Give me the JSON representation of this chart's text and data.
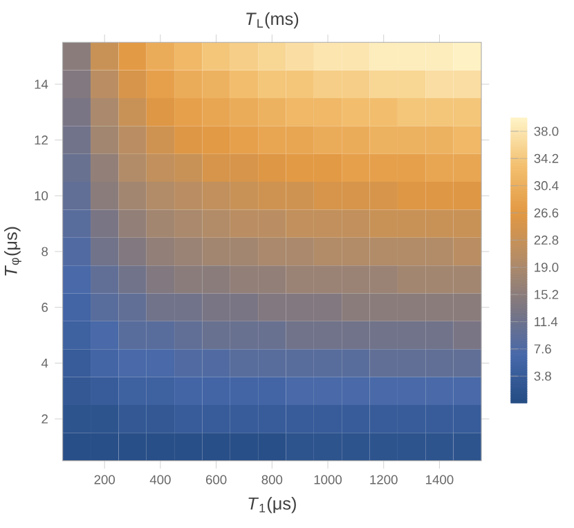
{
  "chart_data": {
    "type": "heatmap",
    "title": "*T*$_{L}$(ms)",
    "xlabel": "*T*$_{1}$(μs)",
    "ylabel": "*T*$_{φ}$(μs)",
    "categories": [
      null,
      "200",
      null,
      "400",
      null,
      "600",
      null,
      "800",
      null,
      "1000",
      null,
      "1200",
      null,
      "1400",
      null
    ],
    "y_categories": [
      null,
      "14",
      null,
      "12",
      null,
      "10",
      null,
      "8",
      null,
      "6",
      null,
      "4",
      null,
      "2",
      null
    ],
    "cells": [
      [
        15,
        23,
        27,
        30,
        32,
        34,
        35,
        36,
        37,
        38,
        38,
        39,
        39,
        39,
        39.5
      ],
      [
        14,
        21,
        25,
        28,
        30,
        31,
        33,
        34,
        34,
        35,
        35,
        36,
        36,
        37,
        37
      ],
      [
        13,
        19,
        23,
        26,
        28,
        29,
        30,
        31,
        32,
        32,
        33,
        33,
        34,
        34,
        34
      ],
      [
        12,
        18,
        21,
        24,
        26,
        27,
        28,
        29,
        29,
        30,
        30,
        31,
        31,
        31,
        32
      ],
      [
        11,
        16,
        20,
        22,
        23,
        25,
        25,
        26,
        27,
        27,
        28,
        28,
        28,
        29,
        29
      ],
      [
        10,
        15,
        18,
        20,
        21,
        22,
        23,
        24,
        24,
        25,
        25,
        25,
        26,
        26,
        26
      ],
      [
        9,
        13,
        16,
        18,
        19,
        20,
        21,
        21,
        22,
        22,
        22,
        23,
        23,
        23,
        23
      ],
      [
        8,
        12,
        14,
        16,
        17,
        18,
        18,
        19,
        19,
        20,
        20,
        20,
        20,
        20,
        21
      ],
      [
        7,
        10,
        12,
        14,
        15,
        15,
        16,
        16,
        17,
        17,
        17,
        17,
        18,
        18,
        18
      ],
      [
        6,
        9,
        10,
        12,
        12,
        13,
        13,
        14,
        14,
        14,
        15,
        15,
        15,
        15,
        15
      ],
      [
        5,
        7,
        9,
        9,
        10,
        11,
        11,
        11,
        12,
        12,
        12,
        12,
        12,
        12,
        13
      ],
      [
        4,
        6,
        7,
        7,
        8,
        8,
        9,
        9,
        9,
        9,
        9,
        10,
        10,
        10,
        10
      ],
      [
        3,
        4,
        5,
        5,
        6,
        6,
        6,
        6,
        7,
        7,
        7,
        7,
        7,
        7,
        7
      ],
      [
        2,
        2,
        3,
        3,
        4,
        4,
        4,
        4,
        4,
        4,
        4,
        4,
        4,
        4,
        4
      ],
      [
        1,
        1,
        1,
        1,
        1,
        1,
        1,
        1,
        2,
        2,
        2,
        2,
        2,
        2,
        2
      ]
    ],
    "clim": [
      0,
      39.9
    ],
    "cticks": [
      {
        "value": 3.8,
        "label": "3.8"
      },
      {
        "value": 7.6,
        "label": "7.6"
      },
      {
        "value": 11.4,
        "label": "11.4"
      },
      {
        "value": 15.2,
        "label": "15.2"
      },
      {
        "value": 19.0,
        "label": "19.0"
      },
      {
        "value": 22.8,
        "label": "22.8"
      },
      {
        "value": 26.6,
        "label": "26.6"
      },
      {
        "value": 30.4,
        "label": "30.4"
      },
      {
        "value": 34.2,
        "label": "34.2"
      },
      {
        "value": 38.0,
        "label": "38.0"
      }
    ]
  }
}
